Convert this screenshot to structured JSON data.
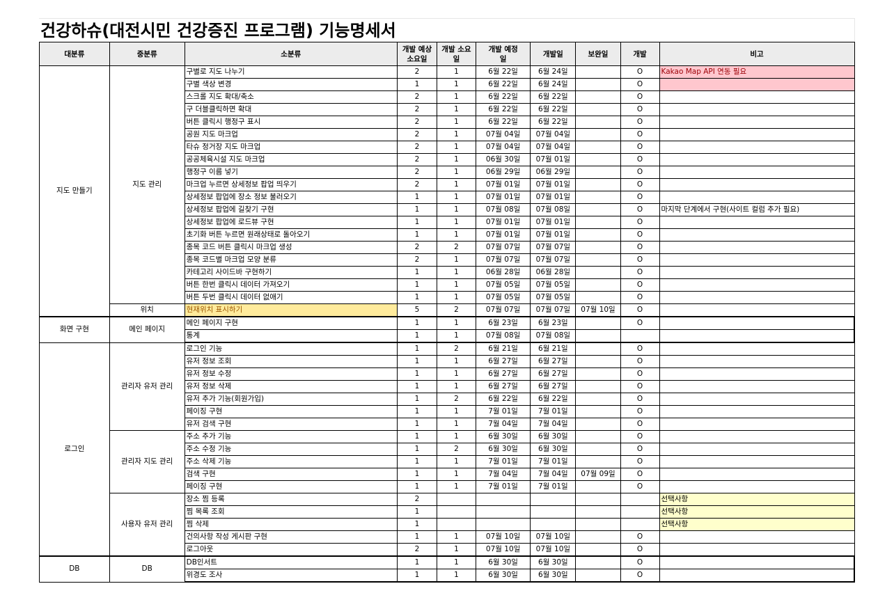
{
  "title": "건강하슈(대전시민 건강증진 프로그램) 기능명세서",
  "headers": [
    "대분류",
    "중분류",
    "소분류",
    "개발 예상 소요일",
    "개발 소요일",
    "개발 예정일",
    "개발일",
    "보완일",
    "개발",
    "비고"
  ],
  "groups": {
    "map": "지도 만들기",
    "map_mgmt": "지도 관리",
    "location": "위치",
    "screen": "화면 구현",
    "main_page": "메인 페이지",
    "login": "로그인",
    "admin_user": "관리자 유저 관리",
    "admin_map": "관리자 지도 관리",
    "user_mgmt": "사용자 유저 관리",
    "db1": "DB",
    "db2": "DB"
  },
  "rows": [
    [
      "구별로 지도 나누기",
      "2",
      "1",
      "6월 22일",
      "6월 24일",
      "",
      "O",
      "Kakao Map API 연동 필요"
    ],
    [
      "구별 색상 변경",
      "1",
      "1",
      "6월 22일",
      "6월 24일",
      "",
      "O",
      ""
    ],
    [
      "스크롤 지도 확대/축소",
      "2",
      "1",
      "6월 22일",
      "6월 22일",
      "",
      "O",
      ""
    ],
    [
      "구 더블클릭하면 확대",
      "2",
      "1",
      "6월 22일",
      "6월 22일",
      "",
      "O",
      ""
    ],
    [
      "버튼 클릭시 행정구 표시",
      "2",
      "1",
      "6월 22일",
      "6월 22일",
      "",
      "O",
      ""
    ],
    [
      "공원 지도 마크업",
      "2",
      "1",
      "07월 04일",
      "07월 04일",
      "",
      "O",
      ""
    ],
    [
      "타슈 정거장 지도 마크업",
      "2",
      "1",
      "07월 04일",
      "07월 04일",
      "",
      "O",
      ""
    ],
    [
      "공공체육시설 지도 마크업",
      "2",
      "1",
      "06월 30일",
      "07월 01일",
      "",
      "O",
      ""
    ],
    [
      "행정구 이름 넣기",
      "2",
      "1",
      "06월 29일",
      "06월 29일",
      "",
      "O",
      ""
    ],
    [
      "마크업 누르면 상세정보 팝업 띄우기",
      "2",
      "1",
      "07월 01일",
      "07월 01일",
      "",
      "O",
      ""
    ],
    [
      "상세정보 팝업에 장소 정보 불러오기",
      "1",
      "1",
      "07월 01일",
      "07월 01일",
      "",
      "O",
      ""
    ],
    [
      "상세정보 팝업에 길찾기 구현",
      "1",
      "1",
      "07월 08일",
      "07월 08일",
      "",
      "O",
      "마지막 단계에서 구현(사이트 컬럼 추가 필요)"
    ],
    [
      "상세정보 팝업에 로드뷰 구현",
      "1",
      "1",
      "07월 01일",
      "07월 01일",
      "",
      "O",
      ""
    ],
    [
      "초기화 버튼 누르면 원래상태로 돌아오기",
      "1",
      "1",
      "07월 01일",
      "07월 01일",
      "",
      "O",
      ""
    ],
    [
      "종목 코드 버튼 클릭시 마크업 생성",
      "2",
      "2",
      "07월 07일",
      "07월 07일",
      "",
      "O",
      ""
    ],
    [
      "종목 코드별 마크업 모양 분류",
      "2",
      "1",
      "07월 07일",
      "07월 07일",
      "",
      "O",
      ""
    ],
    [
      "카테고리 사이드바 구현하기",
      "1",
      "1",
      "06월 28일",
      "06월 28일",
      "",
      "O",
      ""
    ],
    [
      "버튼 한번 클릭시 데이터 가져오기",
      "1",
      "1",
      "07월 05일",
      "07월 05일",
      "",
      "O",
      ""
    ],
    [
      "버튼 두번 클릭시 데이터 없애기",
      "1",
      "1",
      "07월 05일",
      "07월 05일",
      "",
      "O",
      ""
    ],
    [
      "현재위치 표시하기",
      "5",
      "2",
      "07월 07일",
      "07월 07일",
      "07월 10일",
      "O",
      ""
    ],
    [
      "메인 페이지 구현",
      "1",
      "1",
      "6월 23일",
      "6월 23일",
      "",
      "O",
      ""
    ],
    [
      "통계",
      "1",
      "1",
      "07월 08일",
      "07월 08일",
      "",
      "",
      ""
    ],
    [
      "로그인 기능",
      "1",
      "2",
      "6월 21일",
      "6월 21일",
      "",
      "O",
      ""
    ],
    [
      "유저 정보 조회",
      "1",
      "1",
      "6월 27일",
      "6월 27일",
      "",
      "O",
      ""
    ],
    [
      "유저 정보 수정",
      "1",
      "1",
      "6월 27일",
      "6월 27일",
      "",
      "O",
      ""
    ],
    [
      "유저 정보 삭제",
      "1",
      "1",
      "6월 27일",
      "6월 27일",
      "",
      "O",
      ""
    ],
    [
      "유저 추가 기능(회원가입)",
      "1",
      "2",
      "6월 22일",
      "6월 22일",
      "",
      "O",
      ""
    ],
    [
      "페이징 구현",
      "1",
      "1",
      "7월 01일",
      "7월 01일",
      "",
      "O",
      ""
    ],
    [
      "유저 검색 구현",
      "1",
      "1",
      "7월 04일",
      "7월 04일",
      "",
      "O",
      ""
    ],
    [
      "주소 추가 기능",
      "1",
      "1",
      "6월 30일",
      "6월 30일",
      "",
      "O",
      ""
    ],
    [
      "주소 수정 기능",
      "1",
      "2",
      "6월 30일",
      "6월 30일",
      "",
      "O",
      ""
    ],
    [
      "주소 삭제 기능",
      "1",
      "1",
      "7월 01일",
      "7월 01일",
      "",
      "O",
      ""
    ],
    [
      "검색 구현",
      "1",
      "1",
      "7월 04일",
      "7월 04일",
      "07월 09일",
      "O",
      ""
    ],
    [
      "페이징 구현",
      "1",
      "1",
      "7월 01일",
      "7월 01일",
      "",
      "O",
      ""
    ],
    [
      "장소 찜 등록",
      "2",
      "",
      "",
      "",
      "",
      "",
      "선택사항"
    ],
    [
      "찜 목록 조회",
      "1",
      "",
      "",
      "",
      "",
      "",
      "선택사항"
    ],
    [
      "찜 삭제",
      "1",
      "",
      "",
      "",
      "",
      "",
      "선택사항"
    ],
    [
      "건의사항 작성 게시판 구현",
      "1",
      "1",
      "07월 10일",
      "07월 10일",
      "",
      "O",
      ""
    ],
    [
      "로그아웃",
      "2",
      "1",
      "07월 10일",
      "07월 10일",
      "",
      "O",
      ""
    ],
    [
      "DB인서트",
      "1",
      "1",
      "6월 30일",
      "6월 30일",
      "",
      "O",
      ""
    ],
    [
      "위경도 조사",
      "1",
      "1",
      "6월 30일",
      "6월 30일",
      "",
      "O",
      ""
    ]
  ]
}
